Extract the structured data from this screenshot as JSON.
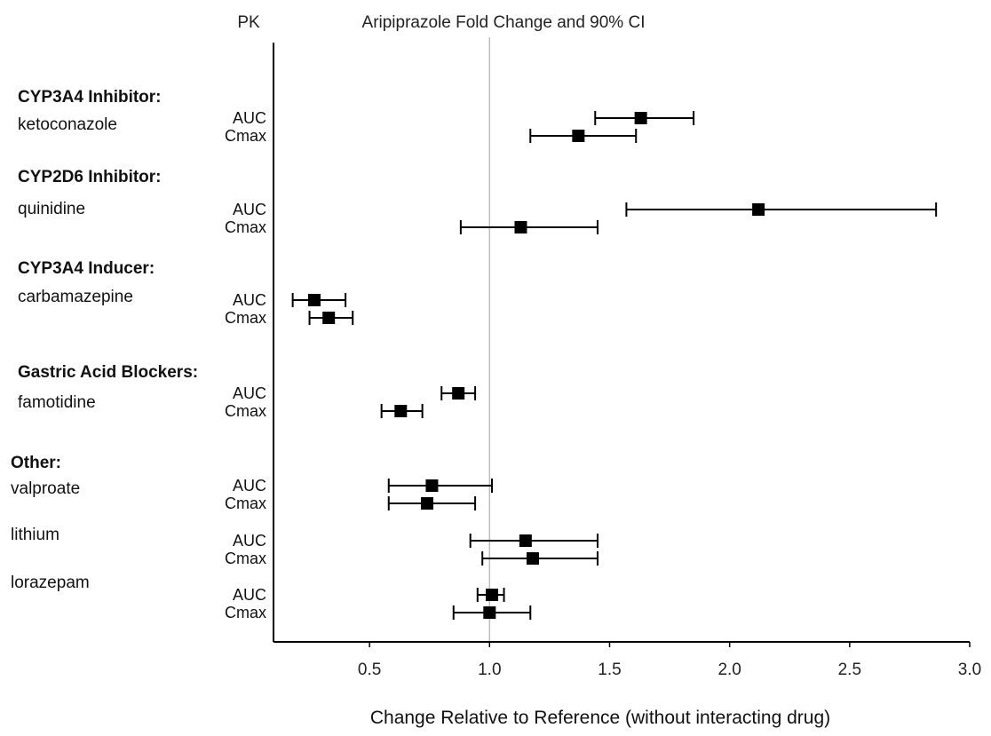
{
  "chart_data": {
    "type": "forest",
    "title": "Aripiprazole Fold Change and 90% CI",
    "column_header": "PK",
    "xlabel": "Change Relative to Reference (without interacting drug)",
    "xlim": [
      0.1,
      3.0
    ],
    "xticks": [
      "0.5",
      "1.0",
      "1.5",
      "2.0",
      "2.5",
      "3.0"
    ],
    "xtick_values": [
      0.5,
      1.0,
      1.5,
      2.0,
      2.5,
      3.0
    ],
    "reference_line": 1.0,
    "groups": [
      {
        "label": "CYP3A4 Inhibitor:",
        "drug": "ketoconazole",
        "rows": [
          {
            "metric": "AUC",
            "estimate": 1.63,
            "ci_low": 1.44,
            "ci_high": 1.85
          },
          {
            "metric": "Cmax",
            "estimate": 1.37,
            "ci_low": 1.17,
            "ci_high": 1.61
          }
        ]
      },
      {
        "label": "CYP2D6 Inhibitor:",
        "drug": "quinidine",
        "rows": [
          {
            "metric": "AUC",
            "estimate": 2.12,
            "ci_low": 1.57,
            "ci_high": 2.86
          },
          {
            "metric": "Cmax",
            "estimate": 1.13,
            "ci_low": 0.88,
            "ci_high": 1.45
          }
        ]
      },
      {
        "label": "CYP3A4 Inducer:",
        "drug": "carbamazepine",
        "rows": [
          {
            "metric": "AUC",
            "estimate": 0.27,
            "ci_low": 0.18,
            "ci_high": 0.4
          },
          {
            "metric": "Cmax",
            "estimate": 0.33,
            "ci_low": 0.25,
            "ci_high": 0.43
          }
        ]
      },
      {
        "label": "Gastric Acid Blockers:",
        "drug": "famotidine",
        "rows": [
          {
            "metric": "AUC",
            "estimate": 0.87,
            "ci_low": 0.8,
            "ci_high": 0.94
          },
          {
            "metric": "Cmax",
            "estimate": 0.63,
            "ci_low": 0.55,
            "ci_high": 0.72
          }
        ]
      },
      {
        "label": "Other:",
        "drug": "valproate",
        "rows": [
          {
            "metric": "AUC",
            "estimate": 0.76,
            "ci_low": 0.58,
            "ci_high": 1.01
          },
          {
            "metric": "Cmax",
            "estimate": 0.74,
            "ci_low": 0.58,
            "ci_high": 0.94
          }
        ]
      },
      {
        "label": "",
        "drug": "lithium",
        "rows": [
          {
            "metric": "AUC",
            "estimate": 1.15,
            "ci_low": 0.92,
            "ci_high": 1.45
          },
          {
            "metric": "Cmax",
            "estimate": 1.18,
            "ci_low": 0.97,
            "ci_high": 1.45
          }
        ]
      },
      {
        "label": "",
        "drug": "lorazepam",
        "rows": [
          {
            "metric": "AUC",
            "estimate": 1.01,
            "ci_low": 0.95,
            "ci_high": 1.06
          },
          {
            "metric": "Cmax",
            "estimate": 1.0,
            "ci_low": 0.85,
            "ci_high": 1.17
          }
        ]
      }
    ]
  }
}
